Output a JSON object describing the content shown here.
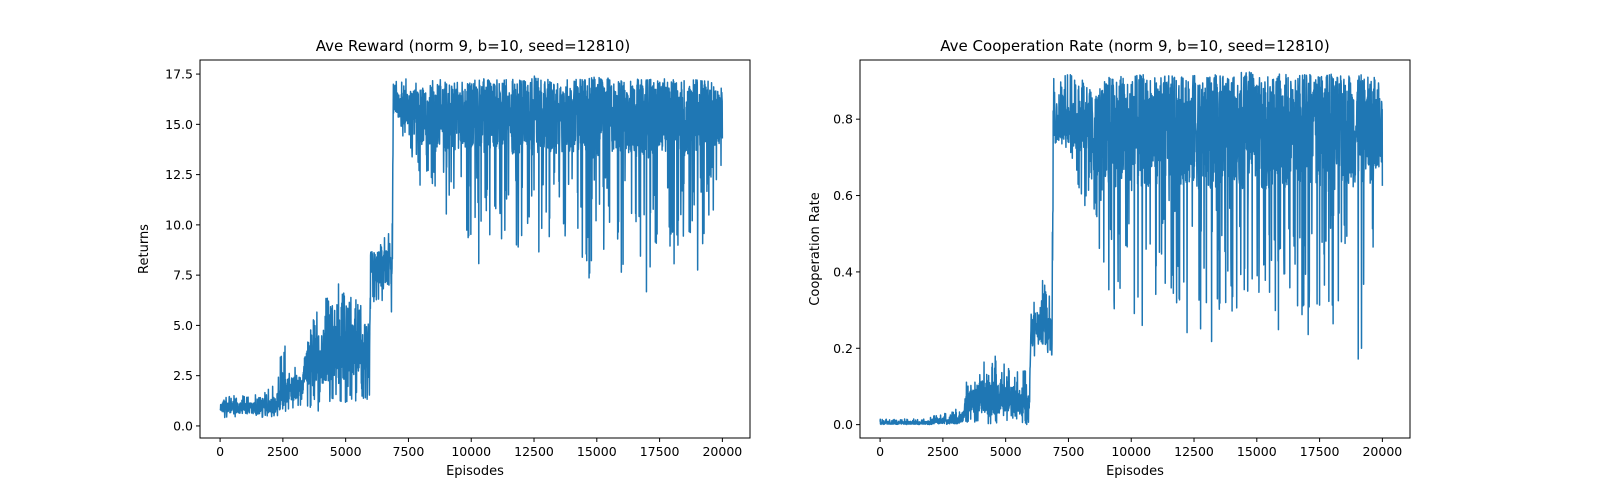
{
  "chart_data": [
    {
      "type": "line",
      "title": "Ave Reward (norm 9, b=10, seed=12810)",
      "xlabel": "Episodes",
      "ylabel": "Returns",
      "xlim": [
        -800,
        21100
      ],
      "ylim": [
        -0.6,
        18.2
      ],
      "xticks": [
        0,
        2500,
        5000,
        7500,
        10000,
        12500,
        15000,
        17500,
        20000
      ],
      "yticks": [
        0.0,
        2.5,
        5.0,
        7.5,
        10.0,
        12.5,
        15.0,
        17.5
      ],
      "xtick_labels": [
        "0",
        "2500",
        "5000",
        "7500",
        "10000",
        "12500",
        "15000",
        "17500",
        "20000"
      ],
      "ytick_labels": [
        "0.0",
        "2.5",
        "5.0",
        "7.5",
        "10.0",
        "12.5",
        "15.0",
        "17.5"
      ],
      "grid": false,
      "color": "#1f77b4",
      "series": [
        {
          "x": [
            0,
            250,
            500,
            750,
            1000,
            1250,
            1500,
            1750,
            2000,
            2250,
            2500,
            2600,
            2750,
            3000,
            3250,
            3400,
            3500,
            3750,
            4000,
            4250,
            4500,
            4750,
            5000,
            5250,
            5500,
            5750,
            5950,
            6000,
            6250,
            6500,
            6750,
            6850,
            6900,
            7000,
            7500,
            8000,
            8500,
            9000,
            9500,
            10000,
            10500,
            11000,
            11500,
            12000,
            12500,
            13000,
            13500,
            14000,
            14500,
            15000,
            15500,
            16000,
            16500,
            17000,
            17500,
            18000,
            18500,
            19000,
            19500,
            20000
          ],
          "y": [
            0.9,
            0.9,
            0.9,
            0.9,
            0.9,
            0.9,
            0.9,
            1.0,
            1.0,
            1.1,
            1.8,
            1.8,
            1.9,
            1.9,
            1.9,
            3.1,
            3.2,
            3.3,
            3.3,
            3.6,
            3.6,
            3.7,
            3.8,
            3.8,
            3.9,
            3.9,
            3.9,
            7.8,
            7.9,
            8.0,
            8.0,
            8.0,
            16.2,
            16.0,
            15.8,
            15.4,
            15.2,
            15.3,
            15.2,
            15.4,
            15.3,
            15.5,
            15.3,
            15.4,
            15.5,
            15.4,
            15.3,
            15.5,
            15.4,
            15.3,
            15.4,
            15.5,
            15.3,
            15.4,
            15.5,
            15.4,
            15.3,
            15.5,
            15.4,
            15.4
          ],
          "y_low": [
            0.4,
            0.4,
            0.4,
            0.4,
            0.4,
            0.4,
            0.4,
            0.4,
            0.4,
            0.5,
            0.6,
            0.6,
            0.8,
            0.8,
            0.8,
            1.6,
            0.7,
            0.5,
            0.6,
            0.8,
            1.0,
            0.9,
            1.1,
            1.0,
            1.2,
            1.2,
            1.3,
            6.2,
            6.0,
            6.2,
            5.8,
            5.5,
            14.8,
            14.9,
            14.0,
            11.5,
            12.0,
            10.5,
            9.5,
            8.2,
            7.5,
            10.0,
            8.0,
            9.0,
            7.0,
            9.0,
            10.0,
            8.0,
            6.8,
            8.0,
            9.0,
            7.2,
            10.0,
            6.5,
            8.5,
            7.8,
            9.0,
            7.0,
            9.5,
            12.5
          ],
          "y_high": [
            1.4,
            1.5,
            1.5,
            1.5,
            1.5,
            1.5,
            1.6,
            1.8,
            2.0,
            2.2,
            4.4,
            4.2,
            2.8,
            3.0,
            3.2,
            4.5,
            5.6,
            5.7,
            6.0,
            6.5,
            6.2,
            7.2,
            6.9,
            6.4,
            6.5,
            6.3,
            6.0,
            9.1,
            9.3,
            9.7,
            10.1,
            9.5,
            17.4,
            17.2,
            17.3,
            17.1,
            17.2,
            17.3,
            17.1,
            17.2,
            17.3,
            17.2,
            17.3,
            17.2,
            17.4,
            17.3,
            17.2,
            17.3,
            17.2,
            17.4,
            17.3,
            17.2,
            17.3,
            17.2,
            17.3,
            17.2,
            17.3,
            17.2,
            17.2,
            17.2
          ]
        }
      ]
    },
    {
      "type": "line",
      "title": "Ave Cooperation Rate (norm 9, b=10, seed=12810)",
      "xlabel": "Episodes",
      "ylabel": "Cooperation Rate",
      "xlim": [
        -800,
        21100
      ],
      "ylim": [
        -0.035,
        0.955
      ],
      "xticks": [
        0,
        2500,
        5000,
        7500,
        10000,
        12500,
        15000,
        17500,
        20000
      ],
      "yticks": [
        0.0,
        0.2,
        0.4,
        0.6,
        0.8
      ],
      "xtick_labels": [
        "0",
        "2500",
        "5000",
        "7500",
        "10000",
        "12500",
        "15000",
        "17500",
        "20000"
      ],
      "ytick_labels": [
        "0.0",
        "0.2",
        "0.4",
        "0.6",
        "0.8"
      ],
      "grid": false,
      "color": "#1f77b4",
      "series": [
        {
          "x": [
            0,
            250,
            500,
            750,
            1000,
            1250,
            1500,
            1750,
            2000,
            2250,
            2500,
            2750,
            3000,
            3250,
            3400,
            3500,
            3750,
            4000,
            4250,
            4500,
            4750,
            5000,
            5250,
            5500,
            5750,
            5950,
            6000,
            6250,
            6500,
            6750,
            6850,
            6900,
            7000,
            7500,
            8000,
            8500,
            9000,
            9500,
            10000,
            10500,
            11000,
            11500,
            12000,
            12500,
            13000,
            13500,
            14000,
            14500,
            15000,
            15500,
            16000,
            16500,
            17000,
            17500,
            18000,
            18500,
            19000,
            19500,
            20000
          ],
          "y": [
            0.005,
            0.005,
            0.005,
            0.005,
            0.005,
            0.005,
            0.005,
            0.005,
            0.005,
            0.008,
            0.01,
            0.012,
            0.012,
            0.015,
            0.05,
            0.06,
            0.06,
            0.07,
            0.07,
            0.07,
            0.07,
            0.08,
            0.07,
            0.06,
            0.06,
            0.05,
            0.25,
            0.26,
            0.26,
            0.26,
            0.26,
            0.82,
            0.8,
            0.79,
            0.78,
            0.76,
            0.77,
            0.77,
            0.76,
            0.77,
            0.77,
            0.78,
            0.77,
            0.77,
            0.76,
            0.77,
            0.78,
            0.77,
            0.77,
            0.76,
            0.77,
            0.77,
            0.78,
            0.77,
            0.76,
            0.77,
            0.77,
            0.77,
            0.77
          ],
          "y_low": [
            0.0,
            0.0,
            0.0,
            0.0,
            0.0,
            0.0,
            0.0,
            0.0,
            0.0,
            0.0,
            0.0,
            0.0,
            0.0,
            0.0,
            0.0,
            0.0,
            0.0,
            0.0,
            0.0,
            0.0,
            0.0,
            0.0,
            0.0,
            0.0,
            0.0,
            0.0,
            0.17,
            0.18,
            0.19,
            0.18,
            0.18,
            0.72,
            0.73,
            0.72,
            0.6,
            0.5,
            0.35,
            0.25,
            0.2,
            0.25,
            0.22,
            0.3,
            0.18,
            0.28,
            0.15,
            0.3,
            0.26,
            0.28,
            0.2,
            0.28,
            0.1,
            0.3,
            0.22,
            0.09,
            0.25,
            0.3,
            0.12,
            0.3,
            0.58
          ],
          "y_high": [
            0.015,
            0.015,
            0.015,
            0.015,
            0.015,
            0.015,
            0.015,
            0.015,
            0.02,
            0.025,
            0.03,
            0.03,
            0.04,
            0.05,
            0.1,
            0.13,
            0.14,
            0.19,
            0.18,
            0.19,
            0.16,
            0.17,
            0.15,
            0.14,
            0.15,
            0.13,
            0.33,
            0.35,
            0.4,
            0.4,
            0.41,
            0.93,
            0.91,
            0.92,
            0.91,
            0.92,
            0.91,
            0.92,
            0.91,
            0.92,
            0.91,
            0.92,
            0.91,
            0.92,
            0.91,
            0.92,
            0.91,
            0.93,
            0.92,
            0.91,
            0.92,
            0.91,
            0.92,
            0.91,
            0.92,
            0.91,
            0.92,
            0.91,
            0.92
          ]
        }
      ]
    }
  ]
}
